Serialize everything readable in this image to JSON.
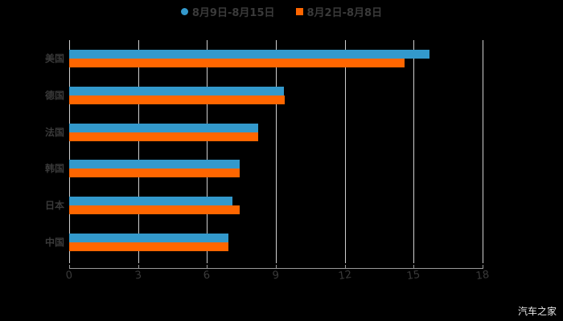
{
  "legend": [
    {
      "label": "8月9日-8月15日",
      "color": "#3399cc",
      "marker": "circle"
    },
    {
      "label": "8月2日-8月8日",
      "color": "#ff6600",
      "marker": "square"
    }
  ],
  "watermark": "汽车之家",
  "chart_data": {
    "type": "bar",
    "orientation": "horizontal",
    "title": "",
    "xlabel": "",
    "ylabel": "",
    "categories": [
      "美国",
      "德国",
      "法国",
      "韩国",
      "日本",
      "中国"
    ],
    "series": [
      {
        "name": "8月9日-8月15日",
        "color": "#3399cc",
        "values": [
          15.7,
          9.35,
          8.23,
          7.42,
          7.11,
          6.93
        ]
      },
      {
        "name": "8月2日-8月8日",
        "color": "#ff6600",
        "values": [
          14.6,
          9.38,
          8.23,
          7.42,
          7.42,
          6.93
        ]
      }
    ],
    "xlim": [
      0,
      18
    ],
    "xticks": [
      "0",
      "3",
      "6",
      "9",
      "12",
      "15",
      "18"
    ],
    "grid": true,
    "legend_position": "top"
  }
}
